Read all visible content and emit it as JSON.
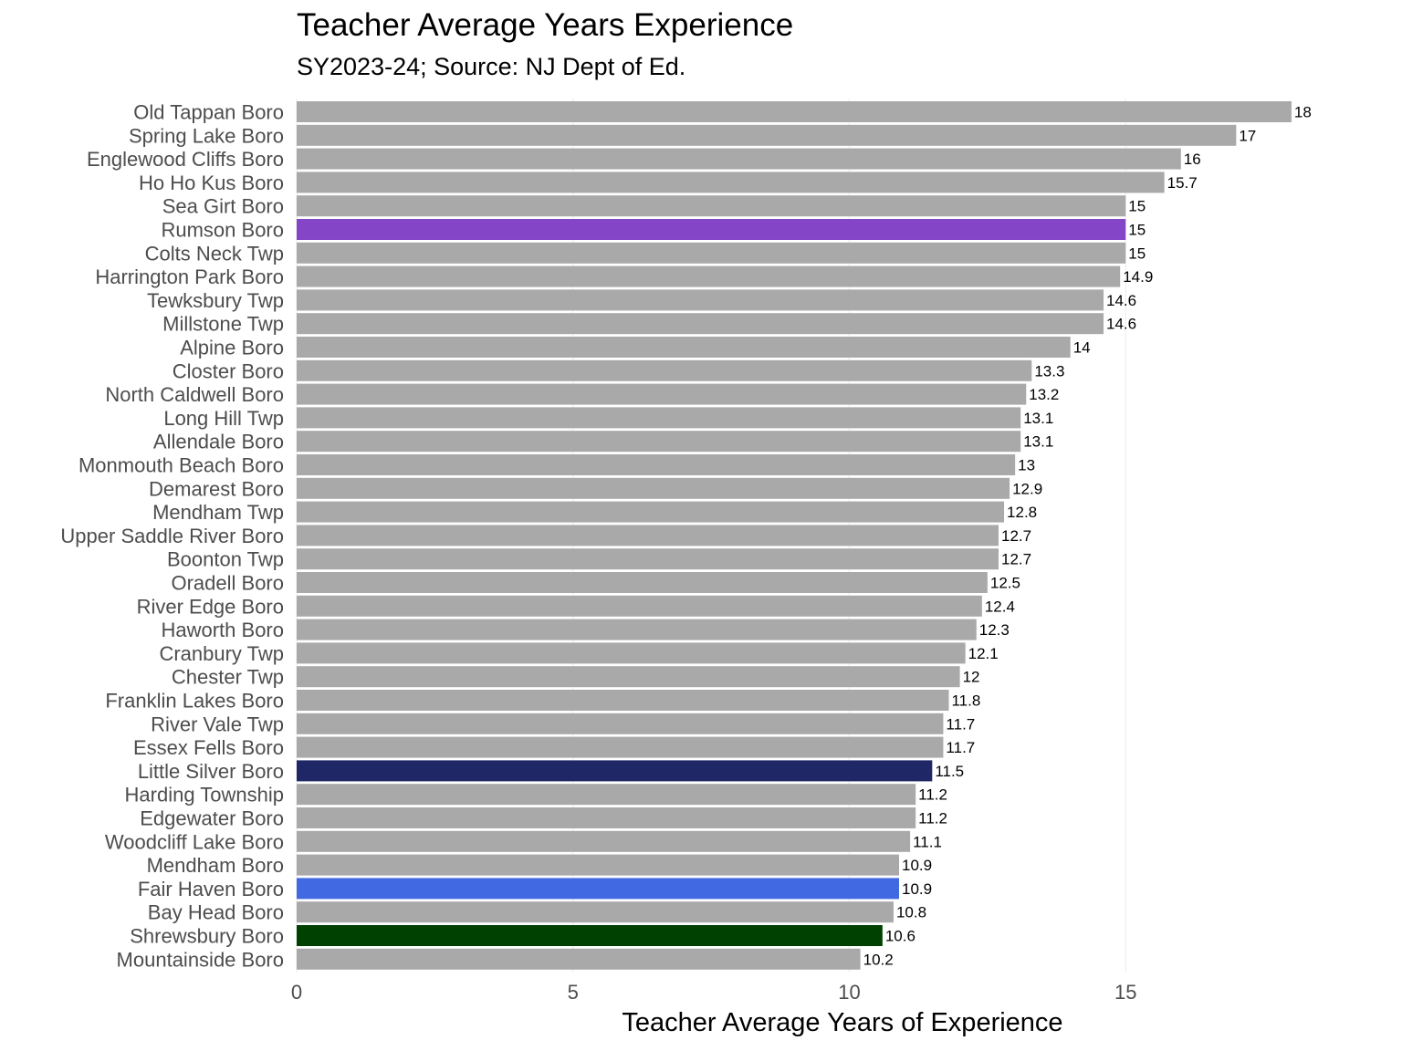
{
  "chart_data": {
    "type": "bar",
    "orientation": "horizontal",
    "title": "Teacher Average Years Experience",
    "subtitle": "SY2023-24; Source: NJ Dept of Ed.",
    "xlabel": "Teacher Average Years of Experience",
    "ylabel": "",
    "xlim": [
      0,
      18
    ],
    "x_ticks": [
      0,
      5,
      10,
      15
    ],
    "grid": "vertical",
    "default_color": "#a9a9a9",
    "categories": [
      "Old Tappan Boro",
      "Spring Lake Boro",
      "Englewood Cliffs Boro",
      "Ho Ho Kus Boro",
      "Sea Girt Boro",
      "Rumson Boro",
      "Colts Neck Twp",
      "Harrington Park Boro",
      "Tewksbury Twp",
      "Millstone Twp",
      "Alpine Boro",
      "Closter Boro",
      "North Caldwell Boro",
      "Long Hill Twp",
      "Allendale Boro",
      "Monmouth Beach Boro",
      "Demarest Boro",
      "Mendham Twp",
      "Upper Saddle River Boro",
      "Boonton Twp",
      "Oradell Boro",
      "River Edge Boro",
      "Haworth Boro",
      "Cranbury Twp",
      "Chester Twp",
      "Franklin Lakes Boro",
      "River Vale Twp",
      "Essex Fells Boro",
      "Little Silver Boro",
      "Harding Township",
      "Edgewater Boro",
      "Woodcliff Lake Boro",
      "Mendham Boro",
      "Fair Haven Boro",
      "Bay Head Boro",
      "Shrewsbury Boro",
      "Mountainside Boro"
    ],
    "values": [
      18,
      17,
      16,
      15.7,
      15,
      15,
      15,
      14.9,
      14.6,
      14.6,
      14,
      13.3,
      13.2,
      13.1,
      13.1,
      13,
      12.9,
      12.8,
      12.7,
      12.7,
      12.5,
      12.4,
      12.3,
      12.1,
      12,
      11.8,
      11.7,
      11.7,
      11.5,
      11.2,
      11.2,
      11.1,
      10.9,
      10.9,
      10.8,
      10.6,
      10.2
    ],
    "value_labels": [
      "18",
      "17",
      "16",
      "15.7",
      "15",
      "15",
      "15",
      "14.9",
      "14.6",
      "14.6",
      "14",
      "13.3",
      "13.2",
      "13.1",
      "13.1",
      "13",
      "12.9",
      "12.8",
      "12.7",
      "12.7",
      "12.5",
      "12.4",
      "12.3",
      "12.1",
      "12",
      "11.8",
      "11.7",
      "11.7",
      "11.5",
      "11.2",
      "11.2",
      "11.1",
      "10.9",
      "10.9",
      "10.8",
      "10.6",
      "10.2"
    ],
    "highlight_colors": {
      "Rumson Boro": "#8445c6",
      "Little Silver Boro": "#1f2766",
      "Fair Haven Boro": "#4169e1",
      "Shrewsbury Boro": "#004000"
    }
  }
}
